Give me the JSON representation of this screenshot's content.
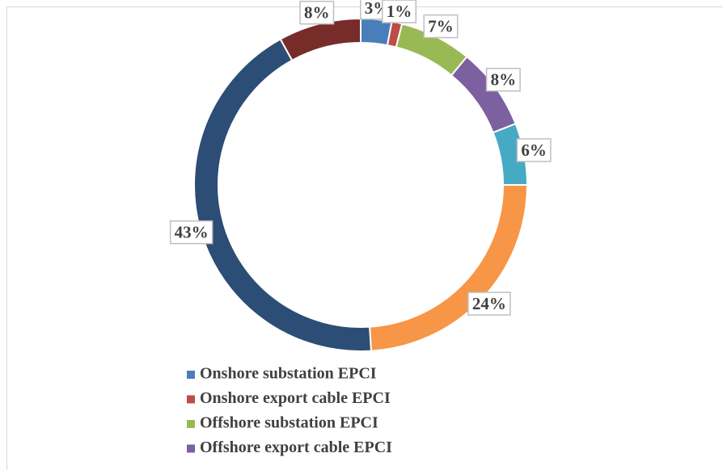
{
  "chart_data": {
    "type": "donut",
    "categories": [
      "Onshore substation EPCI",
      "Onshore export cable EPCI",
      "Offshore substation EPCI",
      "Offshore export cable EPCI",
      null,
      null,
      null,
      null
    ],
    "values": [
      3,
      1,
      7,
      8,
      6,
      24,
      43,
      8
    ],
    "value_labels": [
      "3%",
      "1%",
      "7%",
      "8%",
      "6%",
      "24%",
      "43%",
      "8%"
    ],
    "colors": [
      "#4a7ebb",
      "#be4b48",
      "#98b954",
      "#7d60a0",
      "#46aac5",
      "#f79646",
      "#2c4d75",
      "#772c2a"
    ],
    "legend": "bottom"
  }
}
